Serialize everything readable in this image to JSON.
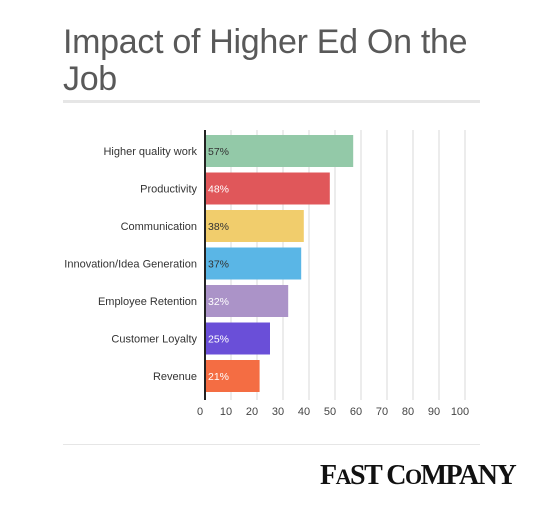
{
  "chart_data": {
    "type": "bar",
    "orientation": "horizontal",
    "title": "Impact of Higher Ed On the Job",
    "categories": [
      "Higher quality work",
      "Productivity",
      "Communication",
      "Innovation/Idea Generation",
      "Employee Retention",
      "Customer Loyalty",
      "Revenue"
    ],
    "values": [
      57,
      48,
      38,
      37,
      32,
      25,
      21
    ],
    "data_labels": [
      "57%",
      "48%",
      "38%",
      "37%",
      "32%",
      "25%",
      "21%"
    ],
    "bar_colors": [
      "#93c9a8",
      "#e0575a",
      "#f1cd6c",
      "#5ab6e6",
      "#ab93c8",
      "#6a4fd8",
      "#f46d43"
    ],
    "label_colors": [
      "#333333",
      "#ffffff",
      "#333333",
      "#333333",
      "#ffffff",
      "#ffffff",
      "#ffffff"
    ],
    "xlim": [
      0,
      100
    ],
    "xticks": [
      "0",
      "10",
      "20",
      "30",
      "40",
      "50",
      "60",
      "70",
      "80",
      "90",
      "100"
    ],
    "grid": true,
    "xlabel": "",
    "ylabel": "",
    "legend": "none"
  },
  "branding": {
    "logo_text": "FAST COMPANY"
  }
}
